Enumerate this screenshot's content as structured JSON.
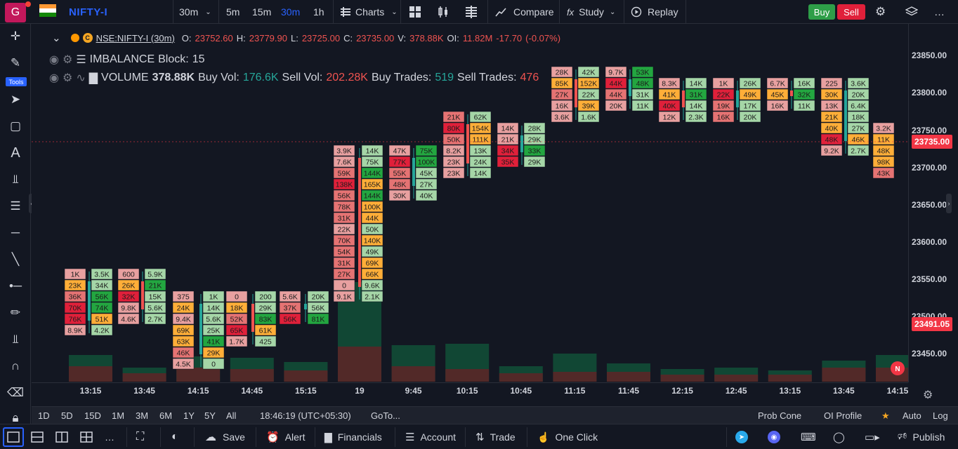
{
  "header": {
    "logo_letter": "G",
    "symbol": "NIFTY-I",
    "interval": "30m",
    "timeframes": [
      "5m",
      "15m",
      "30m",
      "1h"
    ],
    "active_timeframe": "30m",
    "charts_label": "Charts",
    "compare_label": "Compare",
    "study_label": "Study",
    "replay_label": "Replay",
    "buy_label": "Buy",
    "sell_label": "Sell"
  },
  "left_toolbar": {
    "tools_label": "Tools",
    "icons": [
      "crosshair-icon",
      "pen-icon",
      "cursor-icon",
      "rectangle-icon",
      "text-icon",
      "fork-icon",
      "fib-icon",
      "horizontal-line-icon",
      "trend-line-icon",
      "ray-icon",
      "brush-icon",
      "measure-icon",
      "magnet-icon",
      "eraser-icon",
      "lock-icon"
    ]
  },
  "legend": {
    "symbol_full": "NSE:NIFTY-I (30m)",
    "open_label": "O:",
    "open": "23752.60",
    "high_label": "H:",
    "high": "23779.90",
    "low_label": "L:",
    "low": "23725.00",
    "close_label": "C:",
    "close": "23735.00",
    "vol_label": "V:",
    "volume": "378.88K",
    "oi_label": "OI:",
    "oi": "11.82M",
    "change": "-17.70",
    "change_pct": "(-0.07%)",
    "imbalance_label": "IMBALANCE",
    "block_label": "Block:",
    "block": "15",
    "volume_label": "VOLUME",
    "volume_total": "378.88K",
    "buy_vol_label": "Buy Vol:",
    "buy_vol": "176.6K",
    "sell_vol_label": "Sell Vol:",
    "sell_vol": "202.28K",
    "buy_trades_label": "Buy Trades:",
    "buy_trades": "519",
    "sell_trades_label": "Sell Trades:",
    "sell_trades": "476"
  },
  "price_axis": {
    "labels": [
      "23850.00",
      "23800.00",
      "23750.00",
      "23700.00",
      "23650.00",
      "23600.00",
      "23550.00",
      "23500.00",
      "23450.00"
    ],
    "last_price": "23735.00",
    "last_price_color": "#f23645",
    "marker_price": "23491.05",
    "marker_color": "#f23645"
  },
  "time_axis": {
    "labels": [
      "13:15",
      "13:45",
      "14:15",
      "14:45",
      "15:15",
      "19",
      "9:45",
      "10:15",
      "10:45",
      "11:15",
      "11:45",
      "12:15",
      "12:45",
      "13:15",
      "13:45",
      "14:15"
    ]
  },
  "range_bar": {
    "ranges": [
      "1D",
      "5D",
      "15D",
      "1M",
      "3M",
      "6M",
      "1Y",
      "5Y",
      "All"
    ],
    "clock": "18:46:19 (UTC+05:30)",
    "goto": "GoTo...",
    "prob_cone": "Prob Cone",
    "oi_profile": "OI Profile",
    "auto": "Auto",
    "log": "Log"
  },
  "bottom_bar": {
    "save": "Save",
    "alert": "Alert",
    "financials": "Financials",
    "account": "Account",
    "trade": "Trade",
    "one_click": "One Click",
    "publish": "Publish"
  },
  "colors": {
    "background": "#131722",
    "accent": "#2962ff",
    "up": "#26a69a",
    "down": "#ef5350",
    "cell_green_light": "#a5d6a7",
    "cell_green_dark": "#1fa33a",
    "cell_red_light": "#ef9a9a",
    "cell_red_dark": "#e53935",
    "cell_orange": "#ffb74d"
  },
  "chart_data": {
    "type": "footprint",
    "columns": [
      {
        "time": "13:15",
        "cells": [
          [
            "1K",
            "p"
          ],
          [
            "23K",
            "o"
          ],
          [
            "36K",
            "r"
          ],
          [
            "70K",
            "R"
          ],
          [
            "76K",
            "R"
          ],
          [
            "8.9K",
            "p"
          ]
        ],
        "top": 1,
        "w": 0
      },
      {
        "time": "",
        "cells": [
          [
            "3.5K",
            "g"
          ],
          [
            "34K",
            "g"
          ],
          [
            "56K",
            "G"
          ],
          [
            "74K",
            "G"
          ],
          [
            "51K",
            "o"
          ],
          [
            "4.2K",
            "g"
          ]
        ],
        "top": 1,
        "w": 1
      },
      {
        "time": "13:45",
        "cells": [
          [
            "600",
            "p"
          ],
          [
            "26K",
            "o"
          ],
          [
            "32K",
            "R"
          ],
          [
            "9.8K",
            "p"
          ],
          [
            "4.6K",
            "p"
          ]
        ],
        "top": 1,
        "w": 2
      },
      {
        "time": "",
        "cells": [
          [
            "5.9K",
            "g"
          ],
          [
            "21K",
            "G"
          ],
          [
            "15K",
            "g"
          ],
          [
            "5.6K",
            "g"
          ],
          [
            "2.7K",
            "g"
          ]
        ],
        "top": 1,
        "w": 3
      },
      {
        "time": "14:15",
        "cells": [
          [
            "375",
            "p"
          ],
          [
            "24K",
            "o"
          ],
          [
            "9.4K",
            "p"
          ],
          [
            "69K",
            "o"
          ],
          [
            "63K",
            "o"
          ],
          [
            "46K",
            "r"
          ],
          [
            "4.5K",
            "p"
          ]
        ],
        "top": 3,
        "w": 4
      },
      {
        "time": "",
        "cells": [
          [
            "1K",
            "g"
          ],
          [
            "14K",
            "g"
          ],
          [
            "5.6K",
            "g"
          ],
          [
            "25K",
            "g"
          ],
          [
            "41K",
            "G"
          ],
          [
            "29K",
            "o"
          ],
          [
            "0",
            "g"
          ]
        ],
        "top": 3,
        "w": 5
      },
      {
        "time": "14:45",
        "cells": [
          [
            "0",
            "p"
          ],
          [
            "18K",
            "o"
          ],
          [
            "52K",
            "r"
          ],
          [
            "65K",
            "R"
          ],
          [
            "1.7K",
            "p"
          ]
        ],
        "top": 3,
        "w": 6
      },
      {
        "time": "",
        "cells": [
          [
            "200",
            "g"
          ],
          [
            "29K",
            "g"
          ],
          [
            "83K",
            "G"
          ],
          [
            "61K",
            "o"
          ],
          [
            "425",
            "g"
          ]
        ],
        "top": 3,
        "w": 7
      },
      {
        "time": "15:15",
        "cells": [
          [
            "5.6K",
            "p"
          ],
          [
            "37K",
            "r"
          ],
          [
            "56K",
            "R"
          ]
        ],
        "top": 3,
        "w": 8
      },
      {
        "time": "",
        "cells": [
          [
            "20K",
            "g"
          ],
          [
            "56K",
            "g"
          ],
          [
            "81K",
            "G"
          ]
        ],
        "top": 3,
        "w": 9
      },
      {
        "time": "19",
        "cells": [
          [
            "3.9K",
            "p"
          ],
          [
            "7.6K",
            "p"
          ],
          [
            "59K",
            "r"
          ],
          [
            "138K",
            "R"
          ],
          [
            "56K",
            "r"
          ],
          [
            "78K",
            "r"
          ],
          [
            "31K",
            "r"
          ],
          [
            "22K",
            "p"
          ],
          [
            "70K",
            "r"
          ],
          [
            "54K",
            "r"
          ],
          [
            "31K",
            "r"
          ],
          [
            "27K",
            "r"
          ],
          [
            "0",
            "p"
          ],
          [
            "9.1K",
            "p"
          ]
        ],
        "top": -10,
        "w": 10
      },
      {
        "time": "",
        "cells": [
          [
            "14K",
            "g"
          ],
          [
            "75K",
            "g"
          ],
          [
            "144K",
            "G"
          ],
          [
            "165K",
            "o"
          ],
          [
            "144K",
            "G"
          ],
          [
            "100K",
            "o"
          ],
          [
            "44K",
            "o"
          ],
          [
            "50K",
            "g"
          ],
          [
            "140K",
            "o"
          ],
          [
            "49K",
            "g"
          ],
          [
            "69K",
            "o"
          ],
          [
            "66K",
            "o"
          ],
          [
            "9.6K",
            "g"
          ],
          [
            "2.1K",
            "g"
          ]
        ],
        "top": -10,
        "w": 11
      },
      {
        "time": "9:45",
        "cells": [
          [
            "47K",
            "p"
          ],
          [
            "77K",
            "R"
          ],
          [
            "55K",
            "r"
          ],
          [
            "48K",
            "r"
          ],
          [
            "30K",
            "p"
          ]
        ],
        "top": -10,
        "w": 12
      },
      {
        "time": "",
        "cells": [
          [
            "75K",
            "G"
          ],
          [
            "100K",
            "G"
          ],
          [
            "45K",
            "g"
          ],
          [
            "27K",
            "g"
          ],
          [
            "40K",
            "g"
          ]
        ],
        "top": -10,
        "w": 13
      },
      {
        "time": "10:15",
        "cells": [
          [
            "21K",
            "r"
          ],
          [
            "80K",
            "R"
          ],
          [
            "50K",
            "r"
          ],
          [
            "8.2K",
            "p"
          ],
          [
            "23K",
            "p"
          ],
          [
            "23K",
            "p"
          ]
        ],
        "top": -13,
        "w": 14
      },
      {
        "time": "",
        "cells": [
          [
            "62K",
            "g"
          ],
          [
            "154K",
            "o"
          ],
          [
            "111K",
            "o"
          ],
          [
            "13K",
            "g"
          ],
          [
            "24K",
            "g"
          ],
          [
            "14K",
            "g"
          ]
        ],
        "top": -13,
        "w": 15
      },
      {
        "time": "10:45",
        "cells": [
          [
            "14K",
            "p"
          ],
          [
            "21K",
            "p"
          ],
          [
            "34K",
            "R"
          ],
          [
            "35K",
            "R"
          ]
        ],
        "top": -12,
        "w": 16
      },
      {
        "time": "",
        "cells": [
          [
            "28K",
            "g"
          ],
          [
            "29K",
            "g"
          ],
          [
            "33K",
            "G"
          ],
          [
            "29K",
            "g"
          ]
        ],
        "top": -12,
        "w": 17
      },
      {
        "time": "11:15",
        "cells": [
          [
            "28K",
            "p"
          ],
          [
            "85K",
            "o"
          ],
          [
            "27K",
            "r"
          ],
          [
            "16K",
            "p"
          ],
          [
            "3.6K",
            "p"
          ]
        ],
        "top": -17,
        "w": 18
      },
      {
        "time": "",
        "cells": [
          [
            "42K",
            "g"
          ],
          [
            "152K",
            "o"
          ],
          [
            "22K",
            "g"
          ],
          [
            "39K",
            "o"
          ],
          [
            "1.6K",
            "g"
          ]
        ],
        "top": -17,
        "w": 19
      },
      {
        "time": "11:45",
        "cells": [
          [
            "9.7K",
            "p"
          ],
          [
            "44K",
            "R"
          ],
          [
            "44K",
            "r"
          ],
          [
            "20K",
            "p"
          ]
        ],
        "top": -17,
        "w": 20
      },
      {
        "time": "",
        "cells": [
          [
            "53K",
            "G"
          ],
          [
            "48K",
            "G"
          ],
          [
            "31K",
            "g"
          ],
          [
            "11K",
            "g"
          ]
        ],
        "top": -17,
        "w": 21
      },
      {
        "time": "12:15",
        "cells": [
          [
            "8.3K",
            "p"
          ],
          [
            "41K",
            "o"
          ],
          [
            "40K",
            "R"
          ],
          [
            "12K",
            "p"
          ]
        ],
        "top": -16,
        "w": 22
      },
      {
        "time": "",
        "cells": [
          [
            "14K",
            "g"
          ],
          [
            "31K",
            "G"
          ],
          [
            "14K",
            "g"
          ],
          [
            "2.3K",
            "g"
          ]
        ],
        "top": -16,
        "w": 23
      },
      {
        "time": "12:45",
        "cells": [
          [
            "1K",
            "p"
          ],
          [
            "22K",
            "R"
          ],
          [
            "19K",
            "r"
          ],
          [
            "16K",
            "r"
          ]
        ],
        "top": -16,
        "w": 24
      },
      {
        "time": "",
        "cells": [
          [
            "26K",
            "g"
          ],
          [
            "49K",
            "o"
          ],
          [
            "17K",
            "g"
          ],
          [
            "20K",
            "g"
          ]
        ],
        "top": -16,
        "w": 25
      },
      {
        "time": "13:15",
        "cells": [
          [
            "6.7K",
            "p"
          ],
          [
            "45K",
            "o"
          ],
          [
            "16K",
            "p"
          ]
        ],
        "top": -16,
        "w": 26
      },
      {
        "time": "",
        "cells": [
          [
            "16K",
            "g"
          ],
          [
            "32K",
            "G"
          ],
          [
            "11K",
            "g"
          ]
        ],
        "top": -16,
        "w": 27
      },
      {
        "time": "13:45",
        "cells": [
          [
            "225",
            "p"
          ],
          [
            "30K",
            "o"
          ],
          [
            "13K",
            "p"
          ],
          [
            "21K",
            "o"
          ],
          [
            "40K",
            "o"
          ],
          [
            "48K",
            "R"
          ],
          [
            "9.2K",
            "p"
          ]
        ],
        "top": -16,
        "w": 28
      },
      {
        "time": "",
        "cells": [
          [
            "3.6K",
            "g"
          ],
          [
            "20K",
            "g"
          ],
          [
            "6.4K",
            "g"
          ],
          [
            "18K",
            "g"
          ],
          [
            "27K",
            "g"
          ],
          [
            "46K",
            "o"
          ],
          [
            "2.7K",
            "g"
          ]
        ],
        "top": -16,
        "w": 29
      },
      {
        "time": "14:15",
        "cells": [
          [
            "3.2K",
            "p"
          ],
          [
            "11K",
            "o"
          ],
          [
            "48K",
            "o"
          ],
          [
            "98K",
            "o"
          ],
          [
            "43K",
            "r"
          ]
        ],
        "top": -12,
        "w": 30
      }
    ],
    "volume_bars": [
      {
        "time": "13:15",
        "buy": 38,
        "sell": 22
      },
      {
        "time": "13:45",
        "buy": 20,
        "sell": 12
      },
      {
        "time": "14:15",
        "buy": 36,
        "sell": 20
      },
      {
        "time": "14:45",
        "buy": 34,
        "sell": 18
      },
      {
        "time": "15:15",
        "buy": 28,
        "sell": 16
      },
      {
        "time": "19",
        "buy": 142,
        "sell": 50
      },
      {
        "time": "9:45",
        "buy": 52,
        "sell": 22
      },
      {
        "time": "10:15",
        "buy": 54,
        "sell": 18
      },
      {
        "time": "10:45",
        "buy": 22,
        "sell": 12
      },
      {
        "time": "11:15",
        "buy": 40,
        "sell": 14
      },
      {
        "time": "11:45",
        "buy": 26,
        "sell": 14
      },
      {
        "time": "12:15",
        "buy": 18,
        "sell": 10
      },
      {
        "time": "12:45",
        "buy": 20,
        "sell": 10
      },
      {
        "time": "13:15",
        "buy": 16,
        "sell": 10
      },
      {
        "time": "13:45",
        "buy": 30,
        "sell": 20
      },
      {
        "time": "14:15",
        "buy": 38,
        "sell": 20
      }
    ]
  }
}
